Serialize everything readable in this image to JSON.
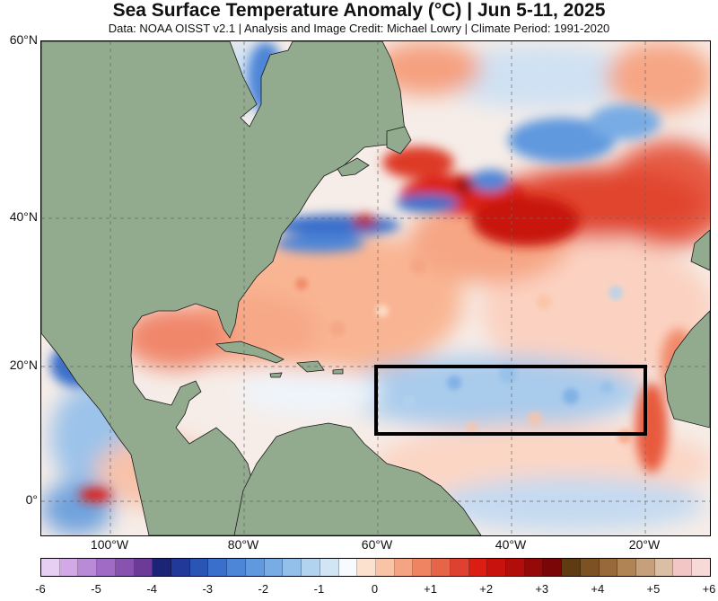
{
  "title": "Sea Surface Temperature Anomaly (°C) | Jun 5-11, 2025",
  "subtitle": "Data: NOAA OISST v2.1 | Analysis and Image Credit: Michael Lowry | Climate Period: 1991-2020",
  "map": {
    "lat_labels": [
      "60°N",
      "40°N",
      "20°N",
      "0°"
    ],
    "lon_labels": [
      "100°W",
      "80°W",
      "60°W",
      "40°W",
      "20°W"
    ],
    "highlight_box": {
      "lon_min": -60,
      "lon_max": -20,
      "lat_min": 10,
      "lat_max": 20
    },
    "colors": {
      "land": "#92ab8f",
      "box": "#000000"
    }
  },
  "colorbar": {
    "tick_labels": [
      "-6",
      "-5",
      "-4",
      "-3",
      "-2",
      "-1",
      "0",
      "+1",
      "+2",
      "+3",
      "+4",
      "+5",
      "+6"
    ],
    "colors": [
      "#e7cef3",
      "#d2a9e6",
      "#b98ad6",
      "#a06bc4",
      "#8753af",
      "#6c3a97",
      "#1c2476",
      "#213a9a",
      "#2b55b4",
      "#3a6fcb",
      "#4d85d7",
      "#6199de",
      "#78ace4",
      "#93c0ea",
      "#b2d3ef",
      "#d2e5f5",
      "#f7fbff",
      "#fde1cf",
      "#f9c4a6",
      "#f4a482",
      "#ee8461",
      "#e66447",
      "#df4130",
      "#dc1d14",
      "#c8120e",
      "#b00d0b",
      "#950a09",
      "#7a0607",
      "#5f3b12",
      "#7c5124",
      "#98693a",
      "#b08454",
      "#c6a07b",
      "#dbbfa5",
      "#f2c6c4",
      "#f7d9d8"
    ]
  }
}
